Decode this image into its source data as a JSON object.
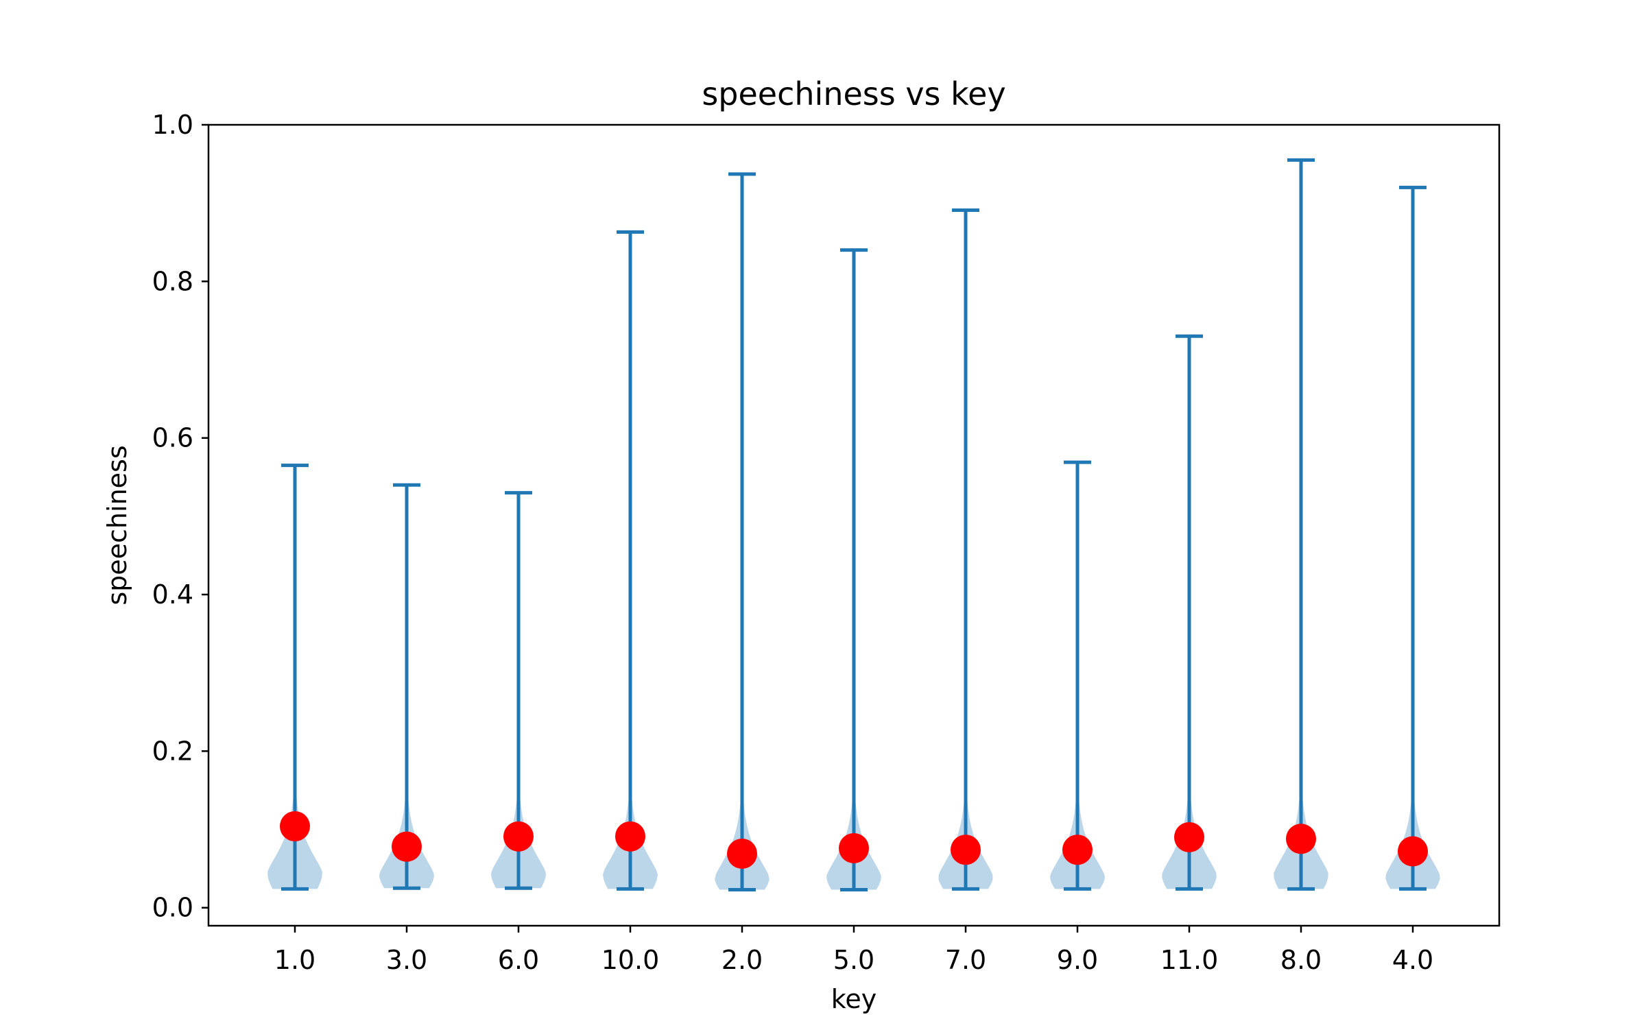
{
  "chart_data": {
    "type": "violin",
    "title": "speechiness vs key",
    "xlabel": "key",
    "ylabel": "speechiness",
    "ylim": [
      -0.023,
      1.0
    ],
    "yticks": [
      "0.0",
      "0.2",
      "0.4",
      "0.6",
      "0.8",
      "1.0"
    ],
    "categories": [
      "1.0",
      "3.0",
      "6.0",
      "10.0",
      "2.0",
      "5.0",
      "7.0",
      "9.0",
      "11.0",
      "8.0",
      "4.0"
    ],
    "series": [
      {
        "min": [
          0.024,
          0.025,
          0.025,
          0.024,
          0.023,
          0.023,
          0.024,
          0.024,
          0.024,
          0.024,
          0.024
        ],
        "max": [
          0.565,
          0.54,
          0.53,
          0.863,
          0.937,
          0.84,
          0.891,
          0.569,
          0.73,
          0.955,
          0.92
        ],
        "mean": [
          0.104,
          0.078,
          0.091,
          0.091,
          0.069,
          0.076,
          0.074,
          0.074,
          0.09,
          0.088,
          0.072
        ],
        "mode": [
          0.045,
          0.042,
          0.044,
          0.043,
          0.038,
          0.04,
          0.04,
          0.04,
          0.042,
          0.043,
          0.04
        ]
      }
    ],
    "colors": {
      "violin_fill": "#bcd6e9",
      "whisker": "#1f77b4",
      "mean_marker": "#ff0000"
    },
    "grid": false,
    "legend": "none"
  }
}
